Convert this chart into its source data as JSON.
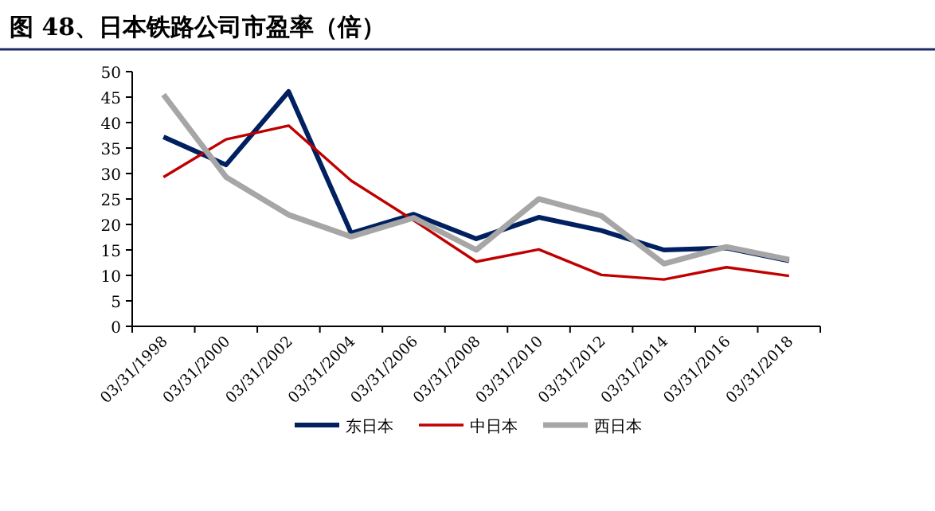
{
  "chart_data": {
    "type": "line",
    "title": "图 48、日本铁路公司市盈率（倍）",
    "categories": [
      "03/31/1998",
      "03/31/2000",
      "03/31/2002",
      "03/31/2004",
      "03/31/2006",
      "03/31/2008",
      "03/31/2010",
      "03/31/2012",
      "03/31/2014",
      "03/31/2016",
      "03/31/2018"
    ],
    "series": [
      {
        "name": "东日本",
        "color": "#002060",
        "values": [
          37.2,
          31.7,
          46.1,
          18.3,
          22.0,
          17.2,
          21.4,
          18.8,
          15.0,
          15.4,
          12.9
        ]
      },
      {
        "name": "中日本",
        "color": "#c00000",
        "values": [
          29.3,
          36.7,
          39.4,
          28.6,
          20.8,
          12.7,
          15.1,
          10.1,
          9.2,
          11.6,
          9.9
        ]
      },
      {
        "name": "西日本",
        "color": "#a6a6a6",
        "values": [
          45.5,
          29.3,
          21.9,
          17.6,
          21.3,
          15.0,
          25.0,
          21.7,
          12.3,
          15.6,
          13.1
        ]
      }
    ],
    "ylim": [
      0,
      50
    ],
    "yticks": [
      0,
      5,
      10,
      15,
      20,
      25,
      30,
      35,
      40,
      45,
      50
    ],
    "legend": "bottom",
    "grid": false
  }
}
